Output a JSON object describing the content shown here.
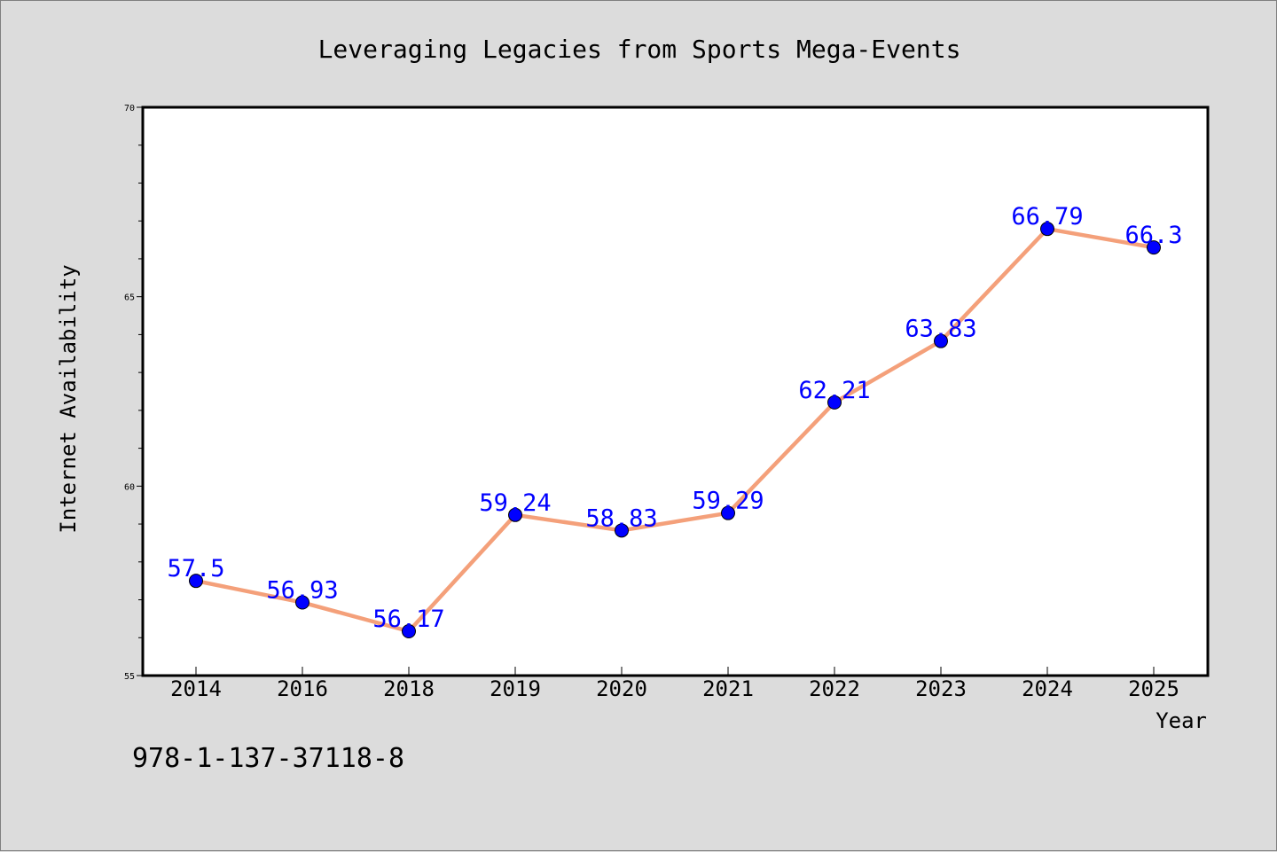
{
  "chart_data": {
    "type": "line",
    "title": "Leveraging Legacies from Sports Mega-Events",
    "xlabel": "Year",
    "ylabel": "Internet Availability",
    "categories": [
      "2014",
      "2016",
      "2018",
      "2019",
      "2020",
      "2021",
      "2022",
      "2023",
      "2024",
      "2025"
    ],
    "series": [
      {
        "values": [
          57.5,
          56.93,
          56.17,
          59.24,
          58.83,
          59.29,
          62.21,
          63.83,
          66.79,
          66.3
        ],
        "labels": [
          "57.5",
          "56.93",
          "56.17",
          "59.24",
          "58.83",
          "59.29",
          "62.21",
          "63.83",
          "66.79",
          "66.3"
        ],
        "line_color": "#f4a07a",
        "marker_color": "#0000ff"
      }
    ],
    "ylim": [
      55,
      70
    ],
    "yticks": [
      "55",
      "60",
      "65",
      "70"
    ],
    "grid": false,
    "legend": "none"
  },
  "footer": {
    "isbn": "978-1-137-37118-8"
  }
}
